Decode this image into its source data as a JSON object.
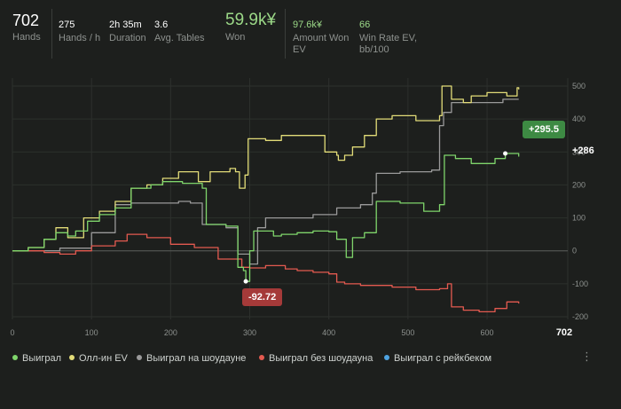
{
  "stats": {
    "hands": {
      "value": "702",
      "label": "Hands"
    },
    "hands_per_hour": {
      "value": "275",
      "label": "Hands / h"
    },
    "duration": {
      "value": "2h 35m",
      "label": "Duration"
    },
    "avg_tables": {
      "value": "3.6",
      "label": "Avg. Tables"
    },
    "won": {
      "value": "59.9k¥",
      "label": "Won"
    },
    "amount_won_ev": {
      "value": "97.6k¥",
      "label_1": "Amount Won",
      "label_2": "EV"
    },
    "win_rate_ev": {
      "value": "66",
      "label_1": "Win Rate EV,",
      "label_2": "bb/100"
    }
  },
  "tooltips": {
    "min": "-92.72",
    "max": "+295.5",
    "end": "+286"
  },
  "legend": [
    {
      "label": "Выиграл",
      "color": "#7fd56b"
    },
    {
      "label": "Олл-ин EV",
      "color": "#e2dc78"
    },
    {
      "label": "Выиграл на шоудауне",
      "color": "#9a9a9a"
    },
    {
      "label": "Выиграл без шоудауна",
      "color": "#e45a50"
    },
    {
      "label": "Выиграл с рейкбеком",
      "color": "#4ea3e0"
    }
  ],
  "menu_icon": "vertical-ellipsis-icon",
  "chart_data": {
    "type": "line",
    "xlim": [
      0,
      702
    ],
    "ylim": [
      -200,
      500
    ],
    "x_ticks": [
      0,
      100,
      200,
      300,
      400,
      500,
      600
    ],
    "x_end_label": "702",
    "y_ticks": [
      500,
      400,
      300,
      200,
      100,
      0,
      -100,
      -200
    ],
    "grid": true,
    "series": [
      {
        "name": "Выиграл",
        "color": "#7fd56b",
        "points": [
          [
            0,
            0
          ],
          [
            20,
            10
          ],
          [
            40,
            35
          ],
          [
            55,
            55
          ],
          [
            70,
            45
          ],
          [
            80,
            60
          ],
          [
            95,
            90
          ],
          [
            110,
            110
          ],
          [
            130,
            130
          ],
          [
            150,
            190
          ],
          [
            165,
            190
          ],
          [
            175,
            200
          ],
          [
            190,
            210
          ],
          [
            215,
            205
          ],
          [
            240,
            190
          ],
          [
            245,
            80
          ],
          [
            270,
            75
          ],
          [
            285,
            -50
          ],
          [
            292,
            -60
          ],
          [
            295,
            -92.72
          ],
          [
            300,
            0
          ],
          [
            305,
            60
          ],
          [
            330,
            45
          ],
          [
            340,
            50
          ],
          [
            360,
            55
          ],
          [
            380,
            60
          ],
          [
            400,
            58
          ],
          [
            410,
            35
          ],
          [
            422,
            -20
          ],
          [
            430,
            40
          ],
          [
            445,
            55
          ],
          [
            460,
            150
          ],
          [
            490,
            145
          ],
          [
            520,
            120
          ],
          [
            540,
            140
          ],
          [
            546,
            290
          ],
          [
            560,
            280
          ],
          [
            580,
            265
          ],
          [
            610,
            280
          ],
          [
            623,
            295.5
          ],
          [
            640,
            286
          ]
        ]
      },
      {
        "name": "Олл-ин EV",
        "color": "#e2dc78",
        "points": [
          [
            0,
            0
          ],
          [
            20,
            10
          ],
          [
            40,
            35
          ],
          [
            55,
            70
          ],
          [
            70,
            40
          ],
          [
            90,
            100
          ],
          [
            110,
            120
          ],
          [
            130,
            150
          ],
          [
            150,
            190
          ],
          [
            170,
            200
          ],
          [
            190,
            220
          ],
          [
            210,
            240
          ],
          [
            235,
            210
          ],
          [
            250,
            240
          ],
          [
            275,
            250
          ],
          [
            282,
            240
          ],
          [
            287,
            190
          ],
          [
            294,
            230
          ],
          [
            298,
            340
          ],
          [
            320,
            335
          ],
          [
            340,
            350
          ],
          [
            370,
            350
          ],
          [
            395,
            300
          ],
          [
            410,
            290
          ],
          [
            412,
            275
          ],
          [
            420,
            290
          ],
          [
            430,
            315
          ],
          [
            445,
            350
          ],
          [
            460,
            400
          ],
          [
            480,
            410
          ],
          [
            510,
            395
          ],
          [
            540,
            410
          ],
          [
            543,
            500
          ],
          [
            555,
            460
          ],
          [
            570,
            450
          ],
          [
            580,
            470
          ],
          [
            600,
            480
          ],
          [
            620,
            480
          ],
          [
            625,
            470
          ],
          [
            638,
            495
          ],
          [
            640,
            490
          ]
        ]
      },
      {
        "name": "Выиграл на шоудауне",
        "color": "#9a9a9a",
        "points": [
          [
            0,
            0
          ],
          [
            60,
            8
          ],
          [
            100,
            55
          ],
          [
            130,
            140
          ],
          [
            150,
            145
          ],
          [
            180,
            145
          ],
          [
            210,
            150
          ],
          [
            225,
            145
          ],
          [
            235,
            145
          ],
          [
            240,
            80
          ],
          [
            270,
            70
          ],
          [
            285,
            -10
          ],
          [
            300,
            -40
          ],
          [
            310,
            70
          ],
          [
            320,
            100
          ],
          [
            380,
            110
          ],
          [
            410,
            130
          ],
          [
            440,
            140
          ],
          [
            455,
            175
          ],
          [
            460,
            235
          ],
          [
            490,
            240
          ],
          [
            530,
            245
          ],
          [
            540,
            380
          ],
          [
            545,
            420
          ],
          [
            555,
            450
          ],
          [
            580,
            450
          ],
          [
            620,
            460
          ],
          [
            640,
            460
          ]
        ]
      },
      {
        "name": "Выиграл без шоудауна",
        "color": "#e45a50",
        "points": [
          [
            0,
            0
          ],
          [
            40,
            -5
          ],
          [
            60,
            -10
          ],
          [
            80,
            0
          ],
          [
            100,
            15
          ],
          [
            130,
            30
          ],
          [
            145,
            50
          ],
          [
            170,
            40
          ],
          [
            200,
            20
          ],
          [
            230,
            10
          ],
          [
            260,
            -25
          ],
          [
            290,
            -50
          ],
          [
            300,
            -52
          ],
          [
            320,
            -45
          ],
          [
            345,
            -55
          ],
          [
            360,
            -60
          ],
          [
            380,
            -65
          ],
          [
            400,
            -70
          ],
          [
            410,
            -95
          ],
          [
            420,
            -100
          ],
          [
            440,
            -105
          ],
          [
            480,
            -110
          ],
          [
            510,
            -118
          ],
          [
            540,
            -115
          ],
          [
            550,
            -100
          ],
          [
            555,
            -170
          ],
          [
            570,
            -180
          ],
          [
            590,
            -185
          ],
          [
            610,
            -175
          ],
          [
            625,
            -155
          ],
          [
            640,
            -160
          ]
        ]
      },
      {
        "name": "Выиграл с рейкбеком",
        "color": "#4ea3e0",
        "points": []
      }
    ]
  }
}
